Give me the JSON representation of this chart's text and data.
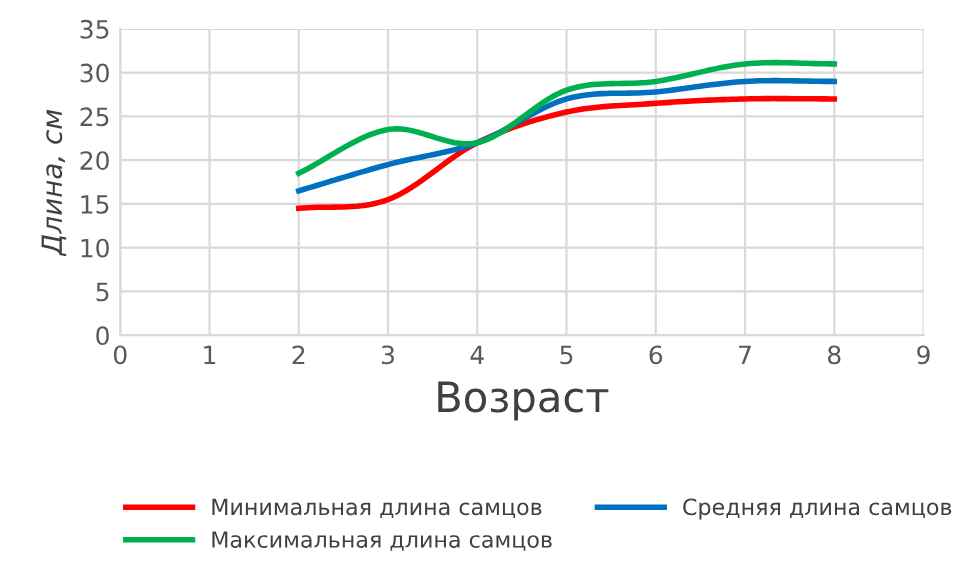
{
  "chart_data": {
    "type": "line",
    "xlabel": "Возраст",
    "ylabel": "Длина, см",
    "x": [
      2,
      3,
      4,
      5,
      6,
      7,
      8
    ],
    "series": [
      {
        "name": "Минимальная длина самцов",
        "color": "#ff0000",
        "values": [
          14.5,
          15.5,
          22,
          25.5,
          26.5,
          27,
          27
        ]
      },
      {
        "name": "Средняя длина самцов",
        "color": "#0070c0",
        "values": [
          16.5,
          19.5,
          22,
          27,
          27.8,
          29,
          29
        ]
      },
      {
        "name": "Максимальная длина самцов",
        "color": "#00b050",
        "values": [
          18.5,
          23.5,
          22,
          28,
          29,
          31,
          31
        ]
      }
    ],
    "xlim": [
      0,
      9
    ],
    "xticks": [
      0,
      1,
      2,
      3,
      4,
      5,
      6,
      7,
      8,
      9
    ],
    "ylim": [
      0,
      35
    ],
    "yticks": [
      0,
      5,
      10,
      15,
      20,
      25,
      30,
      35
    ],
    "grid": true,
    "legend": "bottom",
    "marker": "none",
    "line_style": "solid"
  }
}
